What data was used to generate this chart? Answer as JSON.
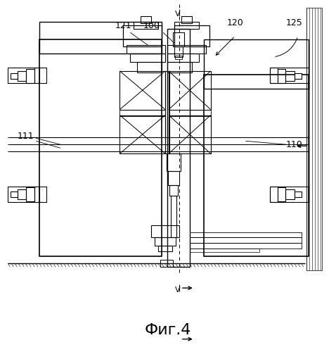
{
  "title": "Фиг.4",
  "bg_color": "#ffffff",
  "line_color": "#000000",
  "fig_width": 4.78,
  "fig_height": 5.0,
  "dpi": 100
}
